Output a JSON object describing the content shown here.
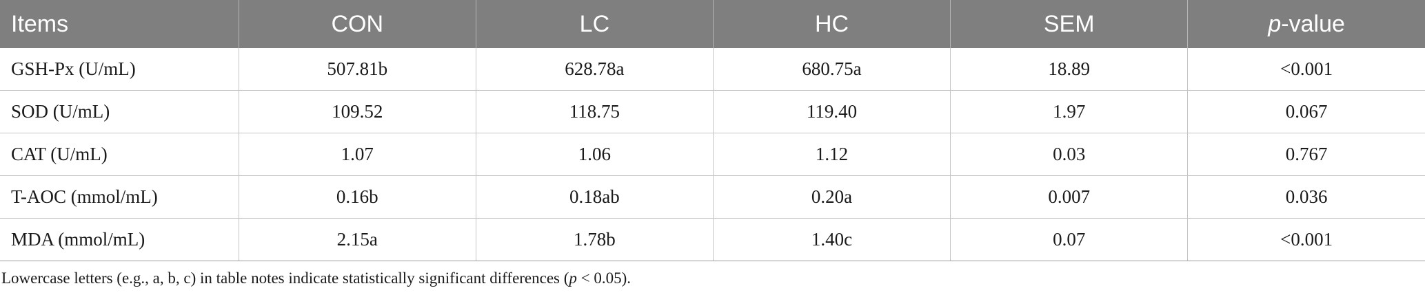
{
  "table": {
    "headers": [
      "Items",
      "CON",
      "LC",
      "HC",
      "SEM",
      "p",
      "-value"
    ],
    "rows": [
      [
        "GSH-Px (U/mL)",
        "507.81b",
        "628.78a",
        "680.75a",
        "18.89",
        "<0.001"
      ],
      [
        "SOD (U/mL)",
        "109.52",
        "118.75",
        "119.40",
        "1.97",
        "0.067"
      ],
      [
        "CAT (U/mL)",
        "1.07",
        "1.06",
        "1.12",
        "0.03",
        "0.767"
      ],
      [
        "T-AOC (mmol/mL)",
        "0.16b",
        "0.18ab",
        "0.20a",
        "0.007",
        "0.036"
      ],
      [
        "MDA (mmol/mL)",
        "2.15a",
        "1.78b",
        "1.40c",
        "0.07",
        "<0.001"
      ]
    ]
  },
  "note": {
    "text_before": "Lowercase letters (e.g., a, b, c) in table notes indicate statistically significant differences (",
    "p_symbol": "p",
    "text_after": " < 0.05)."
  }
}
